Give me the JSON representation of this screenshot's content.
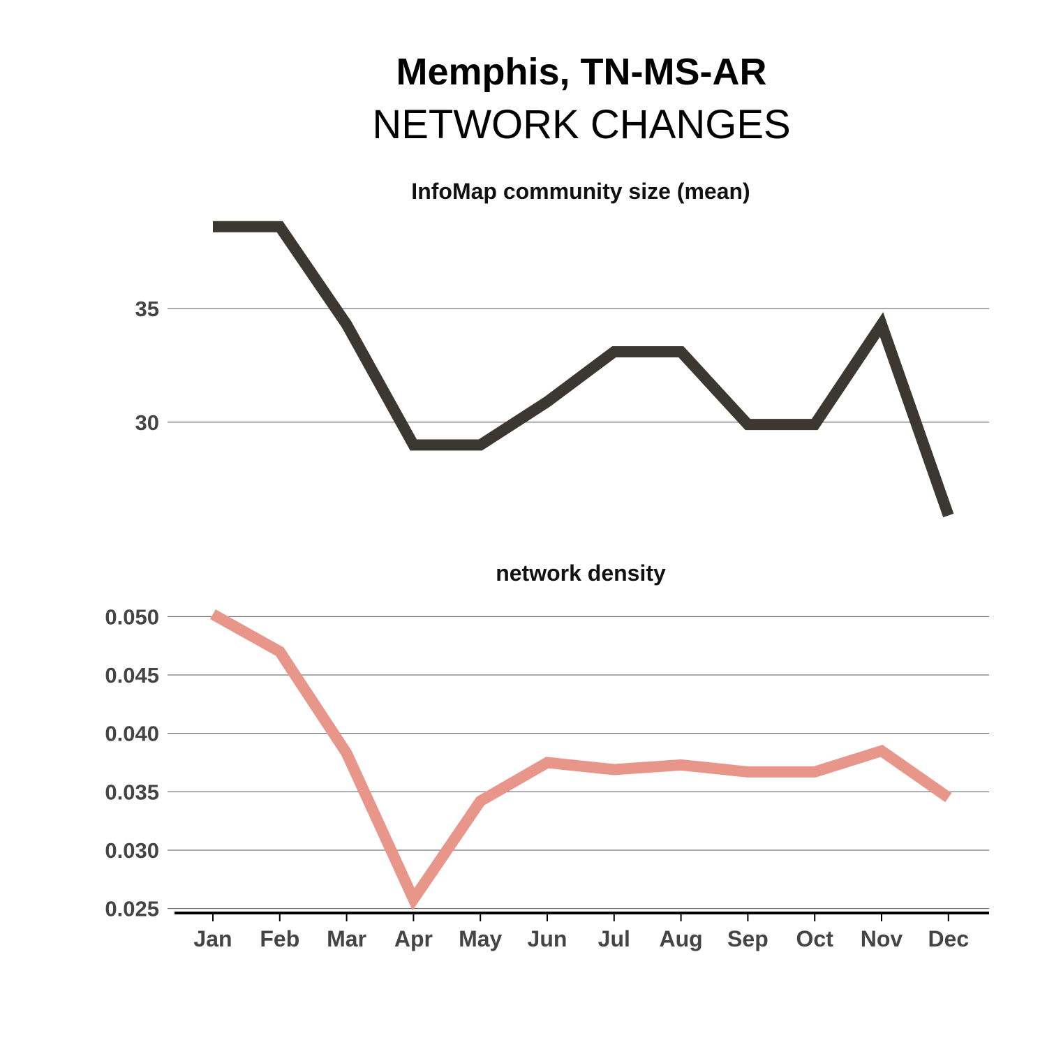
{
  "header": {
    "title": "Memphis, TN-MS-AR",
    "subtitle": "NETWORK CHANGES"
  },
  "colors": {
    "community_line": "#3a3830",
    "density_line": "#e8968a",
    "grid": "#555555",
    "tick_text": "#444444"
  },
  "chart_data": [
    {
      "type": "line",
      "title": "InfoMap community size (mean)",
      "categories": [
        "Jan",
        "Feb",
        "Mar",
        "Apr",
        "May",
        "Jun",
        "Jul",
        "Aug",
        "Sep",
        "Oct",
        "Nov",
        "Dec"
      ],
      "series": [
        {
          "values": [
            38.6,
            38.6,
            34.3,
            29.0,
            29.0,
            30.9,
            33.1,
            33.1,
            29.9,
            29.9,
            34.3,
            25.9
          ]
        }
      ],
      "yticks": [
        30,
        35
      ],
      "ylim": [
        25.7,
        38.9
      ],
      "grid": true
    },
    {
      "type": "line",
      "title": "network density",
      "categories": [
        "Jan",
        "Feb",
        "Mar",
        "Apr",
        "May",
        "Jun",
        "Jul",
        "Aug",
        "Sep",
        "Oct",
        "Nov",
        "Dec"
      ],
      "series": [
        {
          "values": [
            0.0502,
            0.047,
            0.0383,
            0.0258,
            0.0342,
            0.0375,
            0.0369,
            0.0373,
            0.0367,
            0.0367,
            0.0385,
            0.0345
          ]
        }
      ],
      "yticks": [
        "0.025",
        "0.030",
        "0.035",
        "0.040",
        "0.045",
        "0.050"
      ],
      "ylim": [
        0.0248,
        0.0505
      ],
      "grid": true
    }
  ]
}
